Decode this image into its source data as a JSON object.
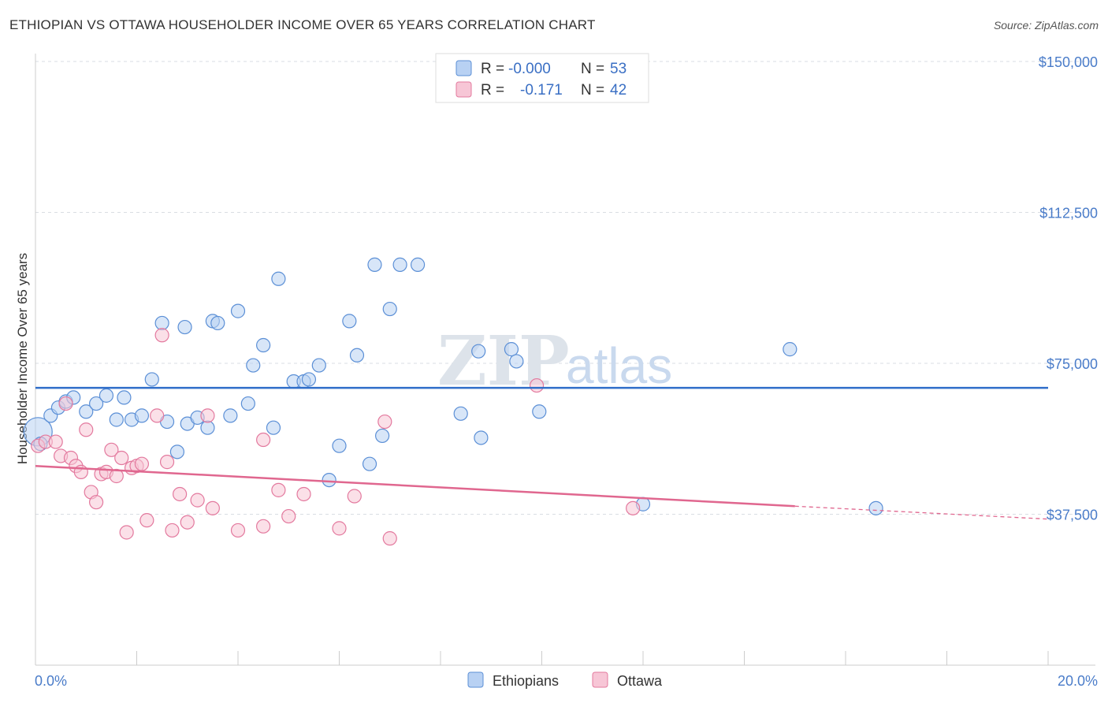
{
  "title": "ETHIOPIAN VS OTTAWA HOUSEHOLDER INCOME OVER 65 YEARS CORRELATION CHART",
  "source": "Source: ZipAtlas.com",
  "watermark": {
    "zip": "ZIP",
    "atlas": "atlas"
  },
  "legend_top": [
    {
      "r_label": "R =",
      "r_value": "-0.000",
      "n_label": "N =",
      "n_value": "53"
    },
    {
      "r_label": "R =",
      "r_value": "-0.171",
      "n_label": "N =",
      "n_value": "42"
    }
  ],
  "legend_bottom": [
    "Ethiopians",
    "Ottawa"
  ],
  "colors": {
    "ethiopians_fill": "#b8d1f3",
    "ethiopians_stroke": "#5b8fd6",
    "ethiopians_line": "#2f6ec9",
    "ottawa_fill": "#f7c6d6",
    "ottawa_stroke": "#e3799e",
    "ottawa_line": "#e0678f",
    "tick_text": "#4a7cc9",
    "grid": "#d9dde3"
  },
  "chart_data": {
    "type": "scatter",
    "ylabel": "Householder Income Over 65 years",
    "xlim": [
      0,
      20
    ],
    "ylim": [
      0,
      150000
    ],
    "x_tick_labels": [
      "0.0%",
      "20.0%"
    ],
    "y_ticks": [
      37500,
      75000,
      112500,
      150000
    ],
    "y_tick_labels": [
      "$37,500",
      "$75,000",
      "$112,500",
      "$150,000"
    ],
    "grid": true,
    "legend_position": "top-center",
    "series": [
      {
        "name": "Ethiopians",
        "trend": {
          "x": [
            0,
            20
          ],
          "y": [
            68900,
            68900
          ],
          "dashed_from": null
        },
        "points": [
          [
            0.05,
            58000
          ],
          [
            0.3,
            62000
          ],
          [
            0.45,
            64000
          ],
          [
            0.6,
            65500
          ],
          [
            0.75,
            66500
          ],
          [
            1.0,
            63000
          ],
          [
            1.2,
            65000
          ],
          [
            1.4,
            67000
          ],
          [
            1.6,
            61000
          ],
          [
            1.75,
            66500
          ],
          [
            1.9,
            61000
          ],
          [
            2.1,
            62000
          ],
          [
            2.3,
            71000
          ],
          [
            2.5,
            85000
          ],
          [
            2.6,
            60500
          ],
          [
            2.8,
            53000
          ],
          [
            2.95,
            84000
          ],
          [
            3.0,
            60000
          ],
          [
            3.2,
            61500
          ],
          [
            3.4,
            59000
          ],
          [
            3.5,
            85500
          ],
          [
            3.6,
            85000
          ],
          [
            3.85,
            62000
          ],
          [
            4.0,
            88000
          ],
          [
            4.2,
            65000
          ],
          [
            4.3,
            74500
          ],
          [
            4.5,
            79500
          ],
          [
            4.7,
            59000
          ],
          [
            4.8,
            96000
          ],
          [
            5.1,
            70500
          ],
          [
            5.3,
            70500
          ],
          [
            5.4,
            71000
          ],
          [
            5.6,
            74500
          ],
          [
            5.8,
            46000
          ],
          [
            6.0,
            54500
          ],
          [
            6.2,
            85500
          ],
          [
            6.35,
            77000
          ],
          [
            6.6,
            50000
          ],
          [
            6.7,
            99500
          ],
          [
            6.85,
            57000
          ],
          [
            7.0,
            88500
          ],
          [
            7.2,
            99500
          ],
          [
            7.55,
            99500
          ],
          [
            8.4,
            62500
          ],
          [
            8.75,
            78000
          ],
          [
            8.8,
            56500
          ],
          [
            9.4,
            78500
          ],
          [
            9.5,
            75500
          ],
          [
            9.95,
            63000
          ],
          [
            12.0,
            40000
          ],
          [
            14.9,
            78500
          ],
          [
            16.6,
            39000
          ],
          [
            0.1,
            55000
          ]
        ]
      },
      {
        "name": "Ottawa",
        "trend": {
          "x": [
            0,
            15,
            20
          ],
          "y": [
            49500,
            39500,
            36300
          ],
          "dashed_from": 15
        },
        "points": [
          [
            0.05,
            54500
          ],
          [
            0.2,
            55500
          ],
          [
            0.4,
            55500
          ],
          [
            0.5,
            52000
          ],
          [
            0.6,
            65000
          ],
          [
            0.7,
            51500
          ],
          [
            0.8,
            49500
          ],
          [
            0.9,
            48000
          ],
          [
            1.0,
            58500
          ],
          [
            1.1,
            43000
          ],
          [
            1.2,
            40500
          ],
          [
            1.3,
            47500
          ],
          [
            1.4,
            48000
          ],
          [
            1.5,
            53500
          ],
          [
            1.6,
            47000
          ],
          [
            1.7,
            51500
          ],
          [
            1.8,
            33000
          ],
          [
            1.9,
            49000
          ],
          [
            2.0,
            49500
          ],
          [
            2.1,
            50000
          ],
          [
            2.2,
            36000
          ],
          [
            2.4,
            62000
          ],
          [
            2.6,
            50500
          ],
          [
            2.5,
            82000
          ],
          [
            2.7,
            33500
          ],
          [
            2.85,
            42500
          ],
          [
            3.0,
            35500
          ],
          [
            3.2,
            41000
          ],
          [
            3.4,
            62000
          ],
          [
            3.5,
            39000
          ],
          [
            4.0,
            33500
          ],
          [
            4.5,
            34500
          ],
          [
            4.5,
            56000
          ],
          [
            4.8,
            43500
          ],
          [
            5.0,
            37000
          ],
          [
            5.3,
            42500
          ],
          [
            6.0,
            34000
          ],
          [
            6.3,
            42000
          ],
          [
            6.9,
            60500
          ],
          [
            7.0,
            31500
          ],
          [
            9.9,
            69500
          ],
          [
            11.8,
            39000
          ]
        ]
      }
    ]
  }
}
